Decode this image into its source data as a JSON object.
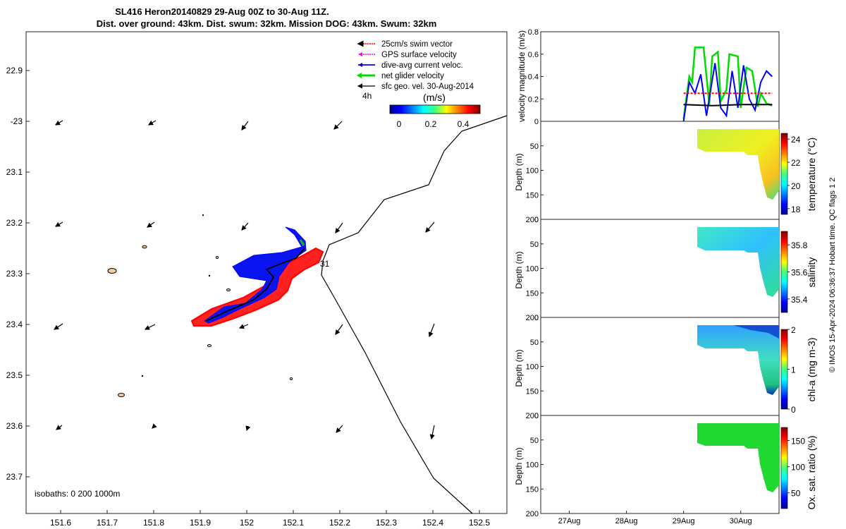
{
  "title": {
    "line1": "SL416 Heron20140829 29-Aug 00Z to 30-Aug 11Z.",
    "line2": "Dist. over ground: 43km. Dist. swum: 32km. Mission DOG: 43km. Swum: 32km"
  },
  "map": {
    "lat_ticks": [
      "22.9",
      "-23",
      "23.1",
      "23.2",
      "23.3",
      "23.4",
      "23.5",
      "23.6",
      "23.7"
    ],
    "lon_ticks": [
      "151.6",
      "151.7",
      "151.8",
      "151.9",
      "152",
      "152.1",
      "152.2",
      "152.3",
      "152.4",
      "152.5"
    ],
    "legend": [
      {
        "label": "25cm/s swim vector",
        "color": "#ff0000"
      },
      {
        "label": "GPS surface velocity",
        "color": "#ff00ff"
      },
      {
        "label": "dive-avg current veloc.",
        "color": "#0000ff"
      },
      {
        "label": "net glider velocity",
        "color": "#00dd00"
      },
      {
        "label": "sfc geo. vel. 30-Aug-2014",
        "color": "#000000"
      }
    ],
    "scale_label": "4h",
    "colorbar_title": "(m/s)",
    "colorbar_ticks": [
      "0",
      "0.2",
      "0.4"
    ],
    "track_label": "31",
    "isobaths_label": "isobaths: 0   200  1000m"
  },
  "chart_data": [
    {
      "type": "line",
      "title": "",
      "ylabel": "velocity magnitude (m/s)",
      "ylim": [
        0,
        0.8
      ],
      "y_ticks": [
        "0",
        "0.2",
        "0.4",
        "0.6",
        "0.8"
      ],
      "x_ticks": [
        "27Aug",
        "28Aug",
        "29Aug",
        "30Aug"
      ],
      "series": [
        {
          "name": "net glider velocity",
          "color": "#00dd00",
          "x": [
            29.0,
            29.1,
            29.15,
            29.2,
            29.35,
            29.45,
            29.5,
            29.6,
            29.65,
            29.75,
            29.8,
            29.95,
            30.0,
            30.1,
            30.2,
            30.3,
            30.35,
            30.45,
            30.55
          ],
          "y": [
            0.02,
            0.4,
            0.35,
            0.66,
            0.66,
            0.15,
            0.58,
            0.62,
            0.18,
            0.28,
            0.6,
            0.58,
            0.12,
            0.48,
            0.45,
            0.13,
            0.25,
            0.16,
            0.14
          ]
        },
        {
          "name": "dive-avg current veloc.",
          "color": "#0000ff",
          "x": [
            29.0,
            29.1,
            29.2,
            29.3,
            29.4,
            29.55,
            29.65,
            29.75,
            29.85,
            29.95,
            30.05,
            30.15,
            30.25,
            30.35,
            30.45,
            30.55
          ],
          "y": [
            0.0,
            0.35,
            0.25,
            0.42,
            0.05,
            0.52,
            0.12,
            0.05,
            0.45,
            0.12,
            0.5,
            0.2,
            0.1,
            0.35,
            0.45,
            0.4
          ]
        },
        {
          "name": "25cm/s swim vector",
          "color": "#ff0000",
          "x": [
            29.0,
            30.55
          ],
          "y": [
            0.25,
            0.25
          ]
        },
        {
          "name": "sfc geo. vel.",
          "color": "#000000",
          "x": [
            29.0,
            29.5,
            30.0,
            30.55
          ],
          "y": [
            0.15,
            0.14,
            0.15,
            0.15
          ]
        }
      ]
    },
    {
      "type": "heatmap",
      "ylabel": "Depth (m)",
      "cblabel": "temperature (°C)",
      "ylim": [
        200,
        0
      ],
      "y_ticks": [
        "0",
        "50",
        "100",
        "150",
        "200"
      ],
      "cb_ticks": [
        "18",
        "20",
        "22",
        "24"
      ],
      "cb_range": [
        17.5,
        24.5
      ]
    },
    {
      "type": "heatmap",
      "ylabel": "Depth (m)",
      "cblabel": "salinity",
      "ylim": [
        200,
        0
      ],
      "y_ticks": [
        "0",
        "50",
        "100",
        "150",
        "200"
      ],
      "cb_ticks": [
        "35.4",
        "35.6",
        "35.8"
      ],
      "cb_range": [
        35.3,
        35.9
      ]
    },
    {
      "type": "heatmap",
      "ylabel": "Depth (m)",
      "cblabel": "chl-a (mg m-3)",
      "ylim": [
        200,
        0
      ],
      "y_ticks": [
        "0",
        "50",
        "100",
        "150",
        "200"
      ],
      "cb_ticks": [
        "0",
        "1",
        "2"
      ],
      "cb_range": [
        0,
        2
      ]
    },
    {
      "type": "heatmap",
      "ylabel": "Depth (m)",
      "cblabel": "Ox. sat. ratio (%)",
      "ylim": [
        200,
        0
      ],
      "y_ticks": [
        "0",
        "50",
        "100",
        "150",
        "200"
      ],
      "cb_ticks": [
        "50",
        "100",
        "150"
      ],
      "cb_range": [
        20,
        175
      ]
    }
  ],
  "footer_text": "© IMOS 15-Apr-2024 06:36:37 Hobart time. QC flags 1  2"
}
